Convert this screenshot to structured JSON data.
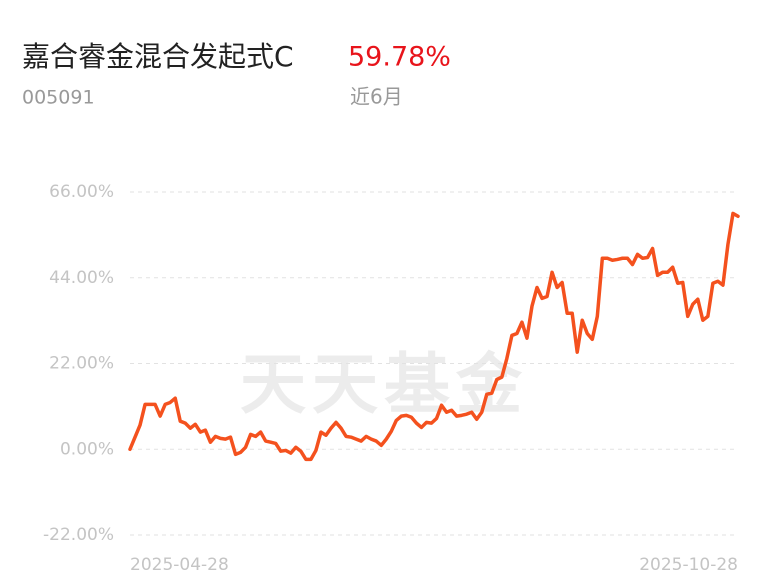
{
  "chart_data": {
    "type": "line",
    "title": "嘉合睿金混合发起式C",
    "return_text": "59.78%",
    "code": "005091",
    "period": "近6月",
    "watermark": "天天基金",
    "color": "#f4511e",
    "grid": true,
    "values": [
      0,
      3.1,
      6.2,
      11.5,
      11.5,
      11.5,
      8.5,
      11.5,
      12,
      13.1,
      7.2,
      6.7,
      5.4,
      6.4,
      4.4,
      4.9,
      1.8,
      3.3,
      2.8,
      2.6,
      3.1,
      -1.3,
      -0.8,
      0.5,
      3.8,
      3.3,
      4.4,
      2.1,
      1.8,
      1.5,
      -0.5,
      -0.3,
      -1.0,
      0.5,
      -0.5,
      -2.6,
      -2.6,
      -0.3,
      4.4,
      3.6,
      5.4,
      6.9,
      5.4,
      3.3,
      3.1,
      2.6,
      2.1,
      3.3,
      2.6,
      2.1,
      1.0,
      2.6,
      4.6,
      7.4,
      8.5,
      8.7,
      8.2,
      6.7,
      5.6,
      6.9,
      6.7,
      7.9,
      11.3,
      9.5,
      10,
      8.5,
      8.7,
      9.0,
      9.5,
      7.7,
      9.5,
      14.1,
      14.4,
      17.9,
      18.5,
      23.3,
      29.2,
      29.7,
      32.6,
      28.5,
      36.7,
      41.5,
      38.7,
      39.2,
      45.4,
      41.5,
      42.8,
      34.9,
      34.9,
      24.9,
      33.1,
      29.7,
      28.2,
      34.1,
      49.0,
      49.0,
      48.5,
      48.7,
      49.0,
      49.0,
      47.4,
      50.0,
      49.0,
      49.2,
      51.5,
      44.6,
      45.4,
      45.4,
      46.7,
      42.6,
      42.8,
      34.1,
      37.2,
      38.5,
      33.1,
      34.1,
      42.6,
      43.1,
      42.1,
      52.6,
      60.5,
      59.78
    ],
    "xlim": [
      0,
      121
    ],
    "xticks": [
      {
        "value": 0,
        "label": "2025-04-28"
      },
      {
        "value": 121,
        "label": "2025-10-28"
      }
    ],
    "ylim": [
      -22,
      66
    ],
    "yticks": [
      {
        "value": 66,
        "label": "66.00%"
      },
      {
        "value": 44,
        "label": "44.00%"
      },
      {
        "value": 22,
        "label": "22.00%"
      },
      {
        "value": 0,
        "label": "0.00%"
      },
      {
        "value": -22,
        "label": "-22.00%"
      }
    ]
  }
}
